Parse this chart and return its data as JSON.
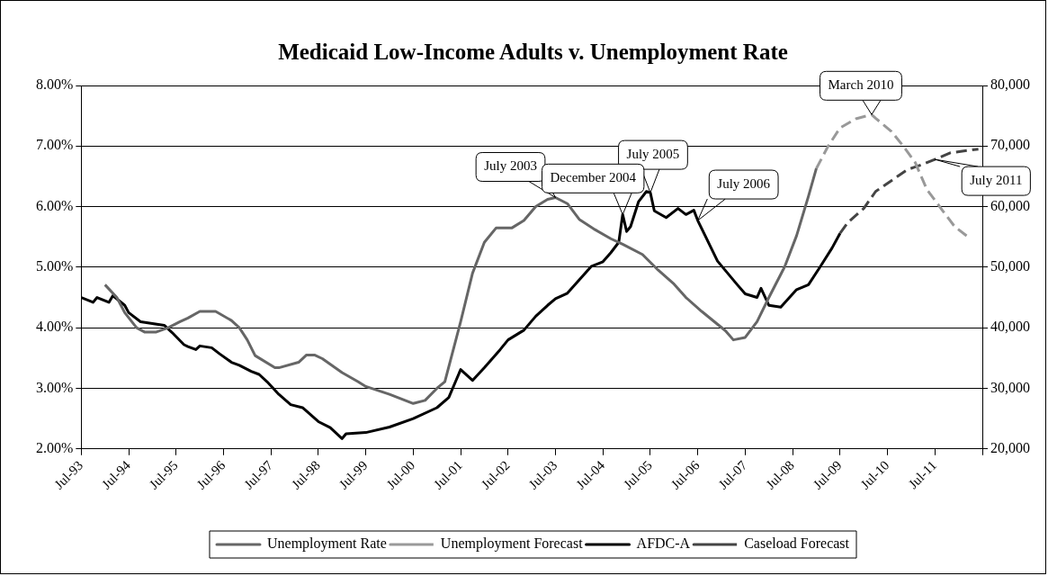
{
  "chart_data": {
    "type": "line",
    "title": "Medicaid Low-Income Adults v. Unemployment Rate",
    "xlim": [
      "1993-07",
      "2012-07"
    ],
    "xticks": [
      {
        "value": "1993-07",
        "label": "Jul-93"
      },
      {
        "value": "1994-07",
        "label": "Jul-94"
      },
      {
        "value": "1995-07",
        "label": "Jul-95"
      },
      {
        "value": "1996-07",
        "label": "Jul-96"
      },
      {
        "value": "1997-07",
        "label": "Jul-97"
      },
      {
        "value": "1998-07",
        "label": "Jul-98"
      },
      {
        "value": "1999-07",
        "label": "Jul-99"
      },
      {
        "value": "2000-07",
        "label": "Jul-00"
      },
      {
        "value": "2001-07",
        "label": "Jul-01"
      },
      {
        "value": "2002-07",
        "label": "Jul-02"
      },
      {
        "value": "2003-07",
        "label": "Jul-03"
      },
      {
        "value": "2004-07",
        "label": "Jul-04"
      },
      {
        "value": "2005-07",
        "label": "Jul-05"
      },
      {
        "value": "2006-07",
        "label": "Jul-06"
      },
      {
        "value": "2007-07",
        "label": "Jul-07"
      },
      {
        "value": "2008-07",
        "label": "Jul-08"
      },
      {
        "value": "2009-07",
        "label": "Jul-09"
      },
      {
        "value": "2010-07",
        "label": "Jul-10"
      },
      {
        "value": "2011-07",
        "label": "Jul-11"
      },
      {
        "value": "2012-07",
        "label": null
      }
    ],
    "ylim": [
      2,
      8
    ],
    "yticks": [
      {
        "value": 2,
        "label": "2.00%"
      },
      {
        "value": 3,
        "label": "3.00%"
      },
      {
        "value": 4,
        "label": "4.00%"
      },
      {
        "value": 5,
        "label": "5.00%"
      },
      {
        "value": 6,
        "label": "6.00%"
      },
      {
        "value": 7,
        "label": "7.00%"
      },
      {
        "value": 8,
        "label": "8.00%"
      }
    ],
    "y2lim": [
      20000,
      80000
    ],
    "y2ticks": [
      {
        "value": 20000,
        "label": "20,000"
      },
      {
        "value": 30000,
        "label": "30,000"
      },
      {
        "value": 40000,
        "label": "40,000"
      },
      {
        "value": 50000,
        "label": "50,000"
      },
      {
        "value": 60000,
        "label": "60,000"
      },
      {
        "value": 70000,
        "label": "70,000"
      },
      {
        "value": 80000,
        "label": "80,000"
      }
    ],
    "grid": "y",
    "legend": "bottom",
    "marker": "none",
    "series": [
      {
        "name": "Unemployment Rate",
        "color": "#666666",
        "line_style": "solid",
        "x": [
          "1994-01",
          "1994-04",
          "1994-06",
          "1994-09",
          "1994-11",
          "1995-02",
          "1995-05",
          "1995-08",
          "1995-10",
          "1996-01",
          "1996-05",
          "1996-09",
          "1996-11",
          "1997-01",
          "1997-03",
          "1997-08",
          "1997-09",
          "1998-02",
          "1998-04",
          "1998-06",
          "1998-08",
          "1999-01",
          "1999-05",
          "1999-07",
          "2000-01",
          "2000-07",
          "2000-10",
          "2001-01",
          "2001-03",
          "2001-07",
          "2001-10",
          "2002-01",
          "2002-04",
          "2002-08",
          "2002-11",
          "2003-02",
          "2003-05",
          "2003-07",
          "2003-10",
          "2004-01",
          "2004-05",
          "2004-09",
          "2004-12",
          "2005-05",
          "2005-09",
          "2006-01",
          "2006-04",
          "2006-08",
          "2007-02",
          "2007-04",
          "2007-07",
          "2007-10",
          "2008-01",
          "2008-05",
          "2008-08",
          "2008-11",
          "2009-01"
        ],
        "values": [
          4.71,
          4.5,
          4.25,
          4.0,
          3.93,
          3.93,
          4.0,
          4.1,
          4.16,
          4.27,
          4.27,
          4.12,
          4.0,
          3.8,
          3.54,
          3.34,
          3.34,
          3.43,
          3.55,
          3.55,
          3.49,
          3.26,
          3.11,
          3.03,
          2.9,
          2.75,
          2.8,
          3.0,
          3.11,
          4.1,
          4.9,
          5.41,
          5.65,
          5.65,
          5.77,
          6.0,
          6.12,
          6.15,
          6.05,
          5.79,
          5.62,
          5.47,
          5.38,
          5.21,
          4.95,
          4.72,
          4.5,
          4.27,
          3.95,
          3.8,
          3.84,
          4.1,
          4.5,
          5.01,
          5.52,
          6.17,
          6.63
        ]
      },
      {
        "name": "Unemployment Forecast",
        "color": "#999999",
        "line_style": "dashed",
        "x": [
          "2009-01",
          "2009-04",
          "2009-07",
          "2009-11",
          "2010-03",
          "2010-04",
          "2010-08",
          "2010-11",
          "2011-02",
          "2011-05",
          "2011-09",
          "2011-12",
          "2012-04"
        ],
        "values": [
          6.63,
          7.0,
          7.3,
          7.45,
          7.52,
          7.46,
          7.24,
          7.0,
          6.73,
          6.28,
          5.93,
          5.67,
          5.47
        ]
      },
      {
        "name": "AFDC-A",
        "color": "#000000",
        "line_style": "solid",
        "axis": "y2",
        "x": [
          "1993-07",
          "1993-10",
          "1993-11",
          "1994-02",
          "1994-03",
          "1994-06",
          "1994-07",
          "1994-10",
          "1995-01",
          "1995-04",
          "1995-06",
          "1995-09",
          "1995-10",
          "1995-12",
          "1996-01",
          "1996-04",
          "1996-06",
          "1996-09",
          "1996-11",
          "1997-02",
          "1997-04",
          "1997-06",
          "1997-09",
          "1997-12",
          "1998-03",
          "1998-07",
          "1998-10",
          "1999-01",
          "1999-02",
          "1999-07",
          "2000-01",
          "2000-07",
          "2001-01",
          "2001-04",
          "2001-07",
          "2001-10",
          "2002-01",
          "2002-05",
          "2002-07",
          "2002-11",
          "2003-02",
          "2003-05",
          "2003-07",
          "2003-10",
          "2004-01",
          "2004-04",
          "2004-07",
          "2004-09",
          "2004-11",
          "2004-12",
          "2005-01",
          "2005-02",
          "2005-04",
          "2005-06",
          "2005-07",
          "2005-08",
          "2005-11",
          "2006-02",
          "2006-04",
          "2006-06",
          "2006-07",
          "2006-12",
          "2007-05",
          "2007-07",
          "2007-10",
          "2007-11",
          "2008-01",
          "2008-04",
          "2008-08",
          "2008-11",
          "2009-02",
          "2009-05",
          "2009-07"
        ],
        "values": [
          45000,
          44200,
          45000,
          44200,
          45300,
          43700,
          42500,
          41000,
          40700,
          40400,
          39200,
          37200,
          36900,
          36400,
          37000,
          36700,
          35700,
          34300,
          33800,
          32800,
          32300,
          31100,
          29000,
          27300,
          26800,
          24500,
          23500,
          21700,
          22500,
          22700,
          23600,
          25000,
          26800,
          28500,
          33100,
          31300,
          33400,
          36400,
          38000,
          39600,
          41900,
          43700,
          44800,
          45700,
          47900,
          50100,
          50900,
          52400,
          54100,
          58700,
          55900,
          56700,
          60800,
          62500,
          62300,
          59300,
          58200,
          59700,
          58700,
          59400,
          57700,
          51000,
          47100,
          45600,
          45000,
          46500,
          43700,
          43400,
          46300,
          47100,
          50100,
          53200,
          55600
        ]
      },
      {
        "name": "Caseload Forecast",
        "color": "#444444",
        "line_style": "dashed",
        "axis": "y2",
        "x": [
          "2009-07",
          "2009-09",
          "2010-01",
          "2010-04",
          "2010-08",
          "2010-12",
          "2011-04",
          "2011-07",
          "2011-11",
          "2012-06"
        ],
        "values": [
          55600,
          57400,
          59700,
          62500,
          64300,
          66100,
          67000,
          67800,
          68900,
          69500
        ]
      }
    ],
    "annotations": [
      {
        "text": "July 2003",
        "x": "2003-07",
        "y": 6.15
      },
      {
        "text": "July 2005",
        "x": "2005-07",
        "y": 6.23
      },
      {
        "text": "December 2004",
        "x": "2004-12",
        "y": 5.87
      },
      {
        "text": "July 2006",
        "x": "2006-07",
        "y": 5.77
      },
      {
        "text": "March 2010",
        "x": "2010-03",
        "y": 7.52
      },
      {
        "text": "July 2011",
        "x": "2011-07",
        "y": 6.78
      }
    ]
  }
}
